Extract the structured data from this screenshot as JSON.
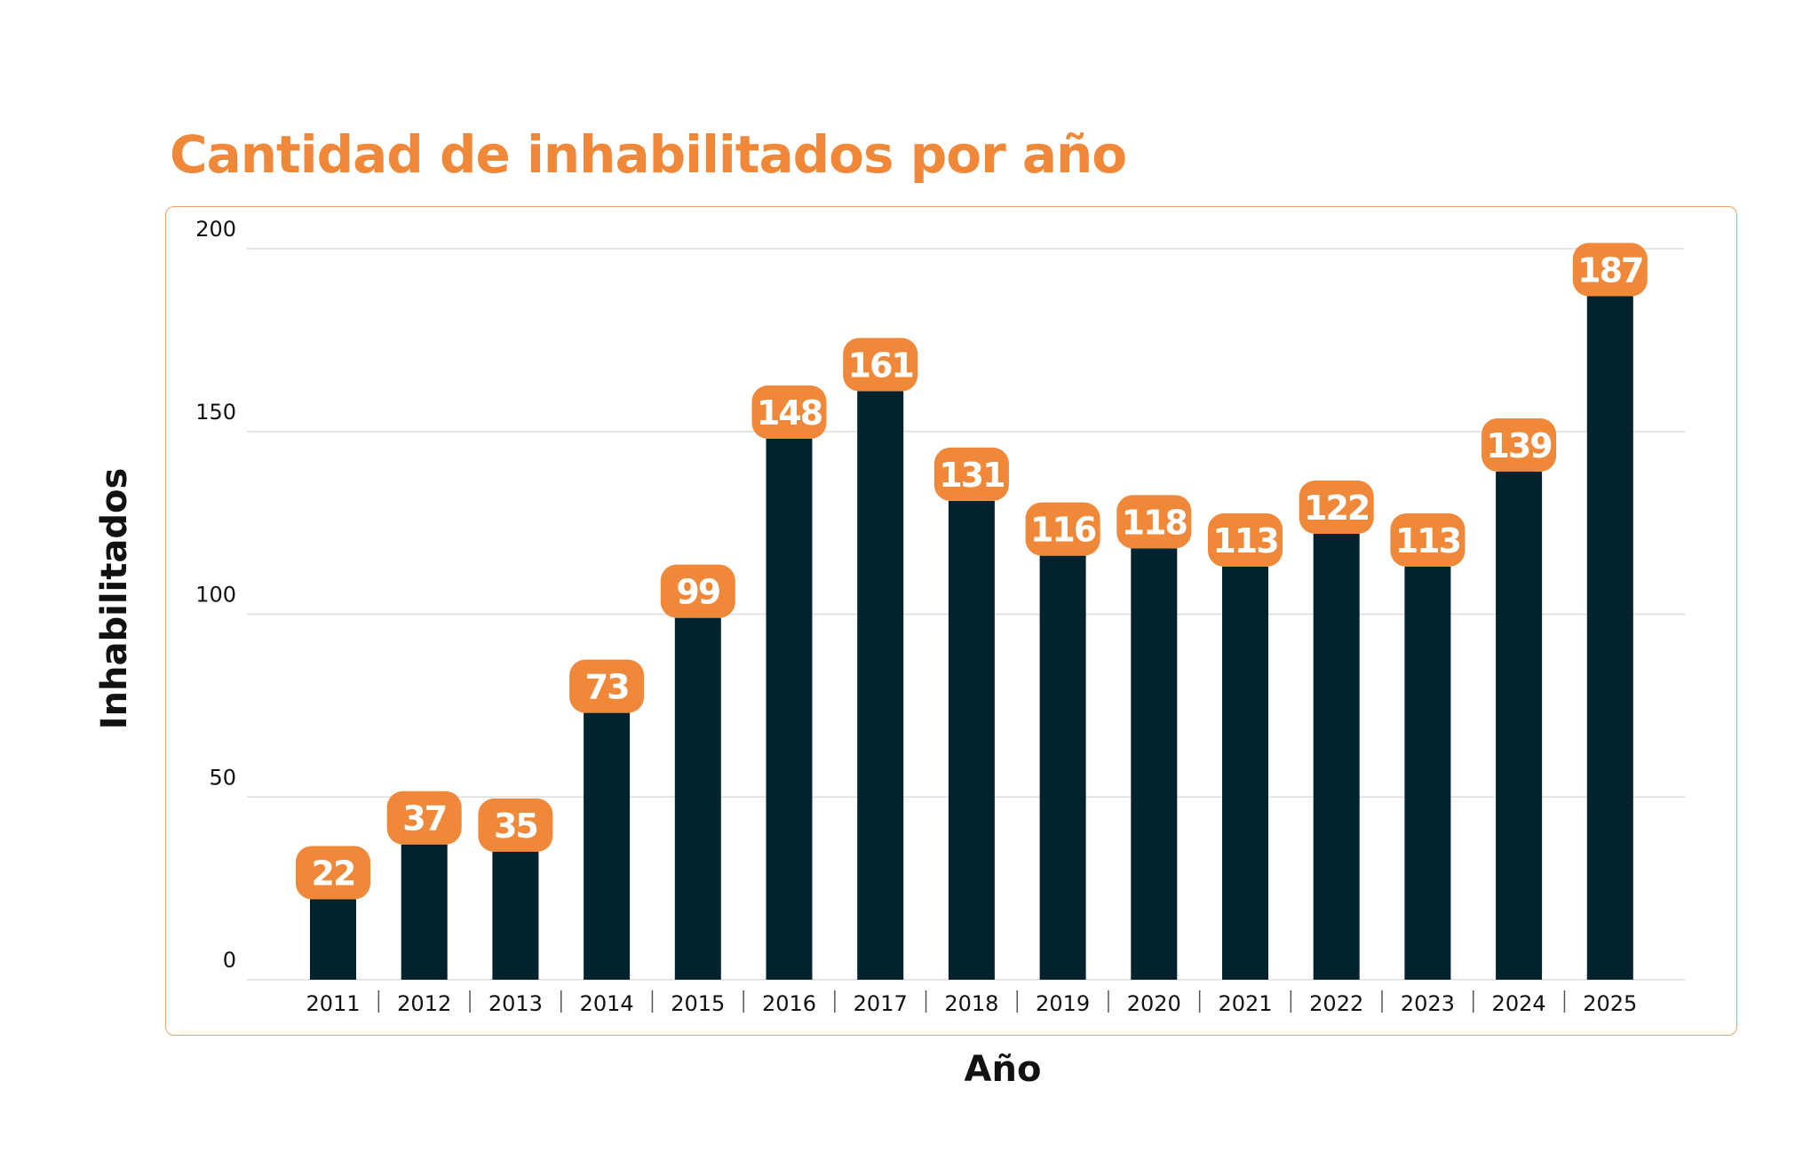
{
  "chart_data": {
    "type": "bar",
    "title": "Cantidad de inhabilitados por año",
    "xlabel": "Año",
    "ylabel": "Inhabilitados",
    "categories": [
      "2011",
      "2012",
      "2013",
      "2014",
      "2015",
      "2016",
      "2017",
      "2018",
      "2019",
      "2020",
      "2021",
      "2022",
      "2023",
      "2024",
      "2025"
    ],
    "values": [
      22,
      37,
      35,
      73,
      99,
      148,
      161,
      131,
      116,
      118,
      113,
      122,
      113,
      139,
      187
    ],
    "ylim": [
      0,
      200
    ],
    "yticks": [
      0,
      50,
      100,
      150,
      200
    ],
    "grid": true,
    "colors": {
      "bar": "#02232e",
      "label_bg": "#f0883a",
      "title": "#f0883a",
      "frame": "#f0a060"
    }
  }
}
